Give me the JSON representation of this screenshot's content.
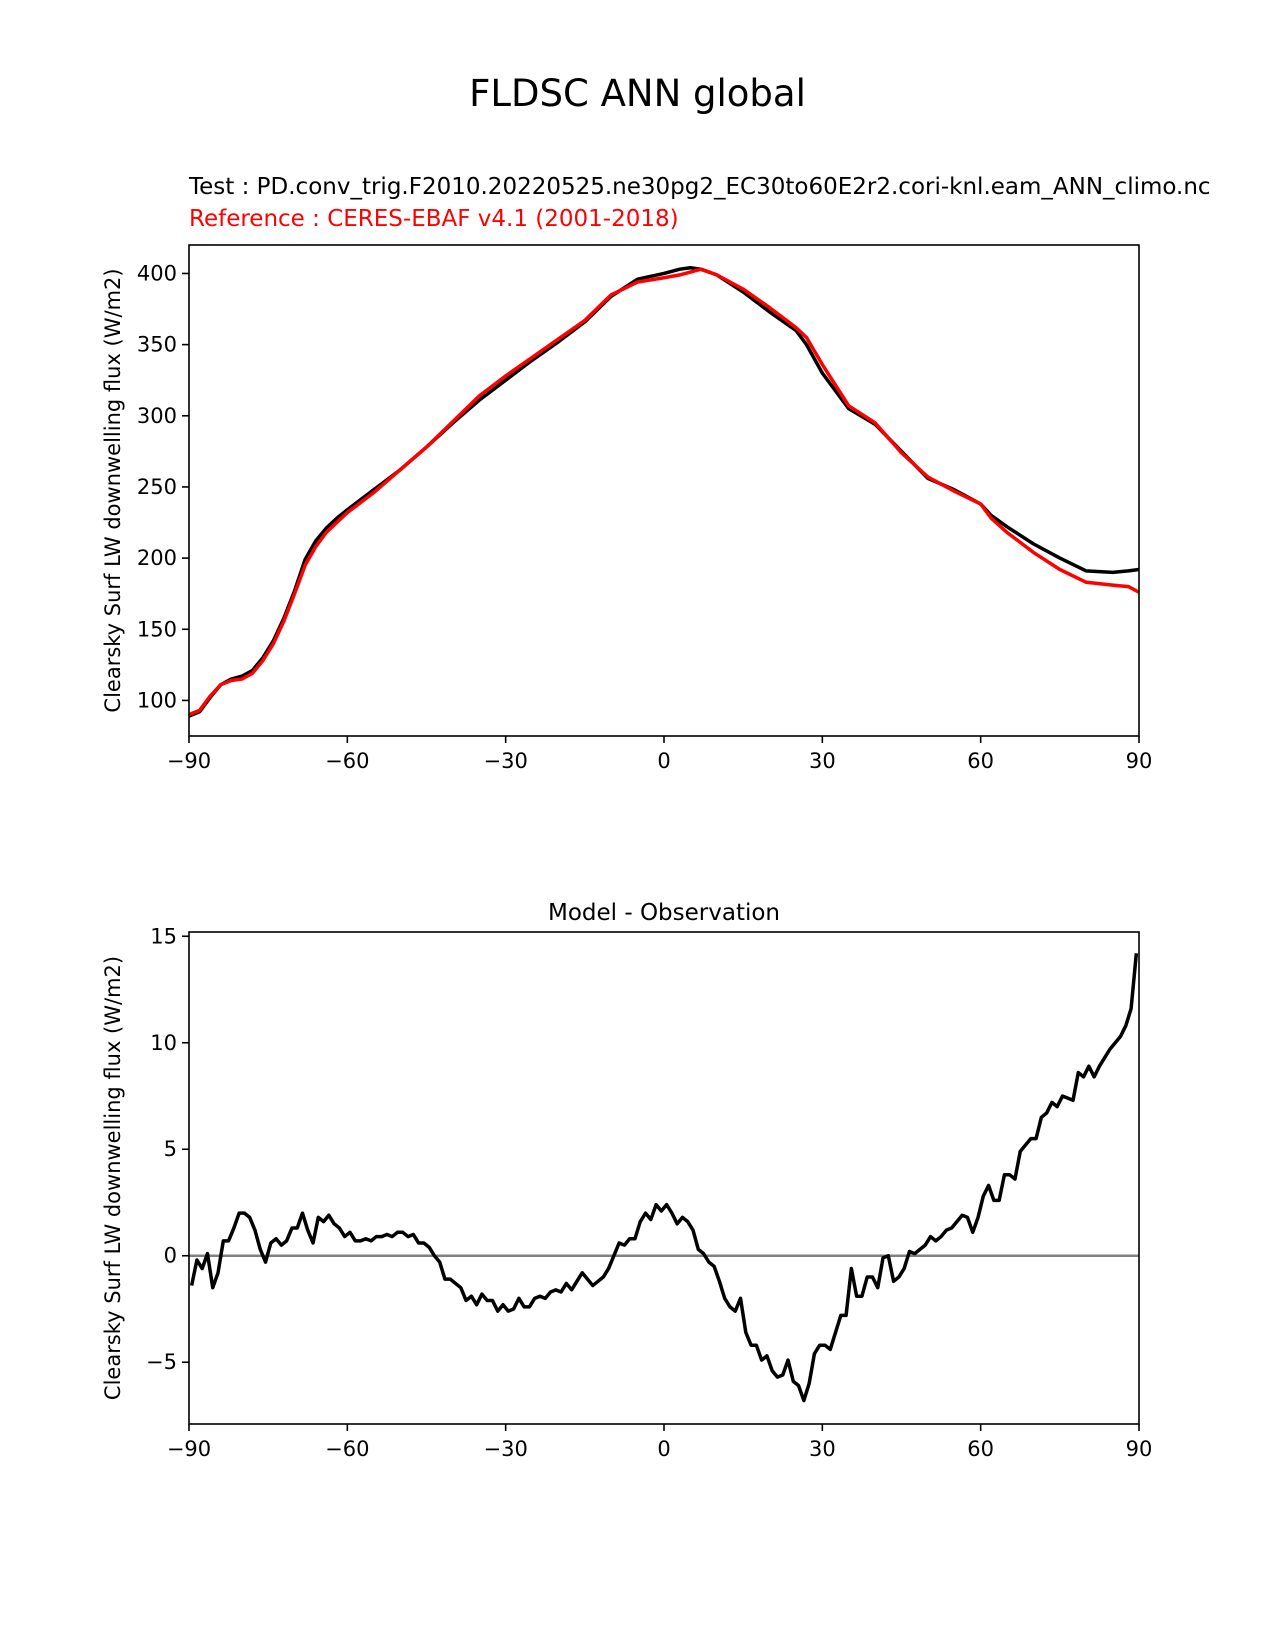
{
  "figure": {
    "title": "FLDSC ANN global",
    "test_label": "Test : PD.conv_trig.F2010.20220525.ne30pg2_EC30to60E2r2.cori-knl.eam_ANN_climo.nc",
    "reference_label": "Reference : CERES-EBAF v4.1 (2001-2018)"
  },
  "chart_data": [
    {
      "type": "line",
      "title": "",
      "xlabel": "",
      "ylabel": "Clearsky Surf LW downwelling flux (W/m2)",
      "xlim": [
        -90,
        90
      ],
      "ylim": [
        75,
        420
      ],
      "xticks": [
        -90,
        -60,
        -30,
        0,
        30,
        60,
        90
      ],
      "xtick_labels": [
        "−90",
        "−60",
        "−30",
        "0",
        "30",
        "60",
        "90"
      ],
      "yticks": [
        100,
        150,
        200,
        250,
        300,
        350,
        400
      ],
      "yticks_labels": [
        "100",
        "150",
        "200",
        "250",
        "300",
        "350",
        "400"
      ],
      "grid": false,
      "series": [
        {
          "color": "#000000",
          "x": [
            -90,
            -88,
            -86,
            -84,
            -82,
            -80,
            -78,
            -76,
            -74,
            -72,
            -70,
            -68,
            -66,
            -64,
            -62,
            -60,
            -55,
            -50,
            -45,
            -40,
            -35,
            -30,
            -25,
            -20,
            -15,
            -10,
            -5,
            0,
            3,
            5,
            7,
            10,
            15,
            20,
            25,
            27,
            30,
            35,
            40,
            45,
            50,
            55,
            60,
            62,
            65,
            70,
            75,
            80,
            85,
            88,
            90
          ],
          "y": [
            89,
            92,
            102,
            111,
            115,
            117,
            121,
            130,
            142,
            158,
            177,
            199,
            212,
            221,
            228,
            234,
            248,
            262,
            278,
            295,
            311,
            325,
            339,
            352,
            366,
            384,
            396,
            400,
            403,
            404,
            403,
            399,
            387,
            373,
            360,
            350,
            330,
            305,
            294,
            275,
            256,
            248,
            238,
            230,
            222,
            210,
            200,
            191,
            190,
            191,
            192
          ]
        },
        {
          "color": "#ff0000",
          "x": [
            -90,
            -88,
            -86,
            -84,
            -82,
            -80,
            -78,
            -76,
            -74,
            -72,
            -70,
            -68,
            -66,
            -64,
            -62,
            -60,
            -55,
            -50,
            -45,
            -40,
            -35,
            -30,
            -25,
            -20,
            -15,
            -10,
            -5,
            0,
            3,
            5,
            7,
            10,
            15,
            20,
            25,
            27,
            30,
            35,
            40,
            45,
            50,
            55,
            60,
            62,
            65,
            70,
            75,
            80,
            85,
            88,
            90
          ],
          "y": [
            90,
            93,
            103,
            111,
            114,
            115,
            119,
            128,
            140,
            156,
            175,
            195,
            208,
            218,
            225,
            232,
            246,
            262,
            278,
            296,
            314,
            328,
            341,
            354,
            367,
            385,
            394,
            397,
            399,
            401,
            403,
            399,
            389,
            376,
            362,
            355,
            336,
            307,
            295,
            274,
            257,
            247,
            238,
            228,
            218,
            204,
            192,
            183,
            181,
            180,
            176
          ]
        }
      ]
    },
    {
      "type": "line",
      "title": "Model - Observation",
      "xlabel": "",
      "ylabel": "Clearsky Surf LW downwelling flux (W/m2)",
      "xlim": [
        -90,
        90
      ],
      "ylim": [
        -7.9,
        15.2
      ],
      "xticks": [
        -90,
        -60,
        -30,
        0,
        30,
        60,
        90
      ],
      "xtick_labels": [
        "−90",
        "−60",
        "−30",
        "0",
        "30",
        "60",
        "90"
      ],
      "yticks": [
        -5,
        0,
        5,
        10,
        15
      ],
      "yticks_labels": [
        "−5",
        "0",
        "5",
        "10",
        "15"
      ],
      "grid": false,
      "zero_line": {
        "y": 0,
        "color": "#808080"
      },
      "series": [
        {
          "color": "#000000",
          "x": [
            -89.5,
            -88.5,
            -87.5,
            -86.5,
            -85.5,
            -84.5,
            -83.5,
            -82.5,
            -81.5,
            -80.5,
            -79.5,
            -78.5,
            -77.5,
            -76.5,
            -75.5,
            -74.5,
            -73.5,
            -72.5,
            -71.5,
            -70.5,
            -69.5,
            -68.5,
            -67.5,
            -66.5,
            -65.5,
            -64.5,
            -63.5,
            -62.5,
            -61.5,
            -60.5,
            -59.5,
            -58.5,
            -57.5,
            -56.5,
            -55.5,
            -54.5,
            -53.5,
            -52.5,
            -51.5,
            -50.5,
            -49.5,
            -48.5,
            -47.5,
            -46.5,
            -45.5,
            -44.5,
            -43.5,
            -42.5,
            -41.5,
            -40.5,
            -39.5,
            -38.5,
            -37.5,
            -36.5,
            -35.5,
            -34.5,
            -33.5,
            -32.5,
            -31.5,
            -30.5,
            -29.5,
            -28.5,
            -27.5,
            -26.5,
            -25.5,
            -24.5,
            -23.5,
            -22.5,
            -21.5,
            -20.5,
            -19.5,
            -18.5,
            -17.5,
            -16.5,
            -15.5,
            -14.5,
            -13.5,
            -12.5,
            -11.5,
            -10.5,
            -9.5,
            -8.5,
            -7.5,
            -6.5,
            -5.5,
            -4.5,
            -3.5,
            -2.5,
            -1.5,
            -0.5,
            0.5,
            1.5,
            2.5,
            3.5,
            4.5,
            5.5,
            6.5,
            7.5,
            8.5,
            9.5,
            10.5,
            11.5,
            12.5,
            13.5,
            14.5,
            15.5,
            16.5,
            17.5,
            18.5,
            19.5,
            20.5,
            21.5,
            22.5,
            23.5,
            24.5,
            25.5,
            26.5,
            27.5,
            28.5,
            29.5,
            30.5,
            31.5,
            32.5,
            33.5,
            34.5,
            35.5,
            36.5,
            37.5,
            38.5,
            39.5,
            40.5,
            41.5,
            42.5,
            43.5,
            44.5,
            45.5,
            46.5,
            47.5,
            48.5,
            49.5,
            50.5,
            51.5,
            52.5,
            53.5,
            54.5,
            55.5,
            56.5,
            57.5,
            58.5,
            59.5,
            60.5,
            61.5,
            62.5,
            63.5,
            64.5,
            65.5,
            66.5,
            67.5,
            68.5,
            69.5,
            70.5,
            71.5,
            72.5,
            73.5,
            74.5,
            75.5,
            76.5,
            77.5,
            78.5,
            79.5,
            80.5,
            81.5,
            82.5,
            83.5,
            84.5,
            85.5,
            86.5,
            87.5,
            88.5,
            89.5
          ],
          "y": [
            -1.4,
            -0.2,
            -0.6,
            0.1,
            -1.5,
            -0.8,
            0.7,
            0.7,
            1.3,
            2.0,
            2.0,
            1.8,
            1.2,
            0.3,
            -0.3,
            0.6,
            0.8,
            0.5,
            0.7,
            1.3,
            1.3,
            2.0,
            1.2,
            0.6,
            1.8,
            1.6,
            1.9,
            1.5,
            1.3,
            0.9,
            1.1,
            0.7,
            0.7,
            0.8,
            0.7,
            0.9,
            0.9,
            1.0,
            0.9,
            1.1,
            1.1,
            0.9,
            1.0,
            0.6,
            0.6,
            0.4,
            0.0,
            -0.3,
            -1.1,
            -1.1,
            -1.3,
            -1.5,
            -2.1,
            -1.9,
            -2.3,
            -1.8,
            -2.1,
            -2.1,
            -2.6,
            -2.3,
            -2.6,
            -2.5,
            -2.0,
            -2.4,
            -2.4,
            -2.0,
            -1.9,
            -2.0,
            -1.7,
            -1.6,
            -1.7,
            -1.3,
            -1.6,
            -1.2,
            -0.8,
            -1.1,
            -1.4,
            -1.2,
            -1.0,
            -0.6,
            0.0,
            0.6,
            0.5,
            0.8,
            0.8,
            1.6,
            2.0,
            1.7,
            2.4,
            2.1,
            2.4,
            2.0,
            1.5,
            1.8,
            1.6,
            1.2,
            0.3,
            0.1,
            -0.3,
            -0.5,
            -1.2,
            -2.0,
            -2.4,
            -2.6,
            -2.0,
            -3.6,
            -4.2,
            -4.2,
            -4.9,
            -4.7,
            -5.4,
            -5.7,
            -5.6,
            -4.9,
            -5.9,
            -6.1,
            -6.8,
            -6.0,
            -4.6,
            -4.2,
            -4.2,
            -4.4,
            -3.6,
            -2.8,
            -2.8,
            -0.6,
            -1.9,
            -1.9,
            -1.0,
            -1.0,
            -1.5,
            -0.1,
            0.0,
            -1.2,
            -1.0,
            -0.6,
            0.2,
            0.1,
            0.3,
            0.5,
            0.9,
            0.7,
            0.9,
            1.2,
            1.3,
            1.6,
            1.9,
            1.8,
            1.1,
            1.8,
            2.8,
            3.3,
            2.6,
            2.6,
            3.8,
            3.8,
            3.6,
            4.9,
            5.2,
            5.5,
            5.5,
            6.5,
            6.7,
            7.2,
            7.0,
            7.5,
            7.4,
            7.3,
            8.6,
            8.4,
            8.9,
            8.4,
            8.9,
            9.3,
            9.7,
            10.0,
            10.3,
            10.8,
            11.6,
            14.2
          ]
        }
      ]
    }
  ]
}
